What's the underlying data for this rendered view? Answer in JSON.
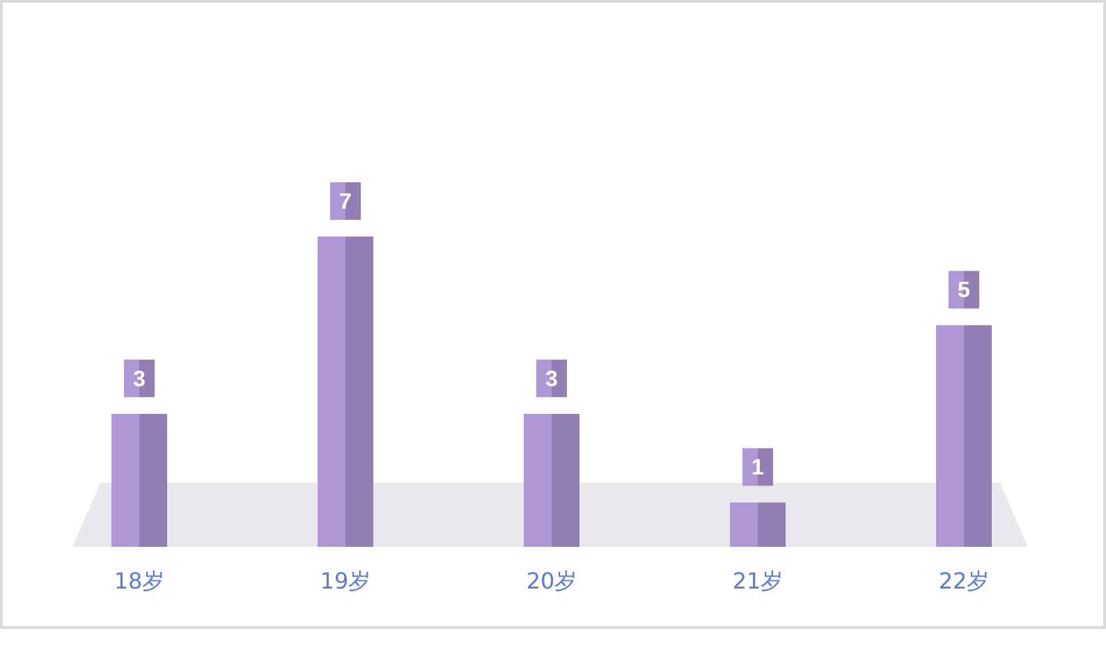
{
  "chart_data": {
    "type": "bar",
    "categories": [
      "18岁",
      "19岁",
      "20岁",
      "21岁",
      "22岁"
    ],
    "values": [
      3,
      7,
      3,
      1,
      5
    ],
    "color": "#a08ac4",
    "data_labels": true
  }
}
